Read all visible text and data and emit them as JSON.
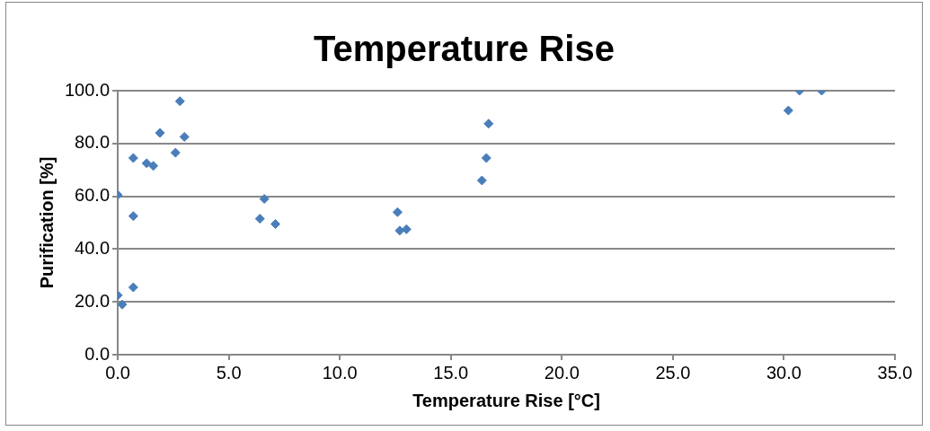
{
  "chart_data": {
    "type": "scatter",
    "title": "Temperature Rise",
    "xlabel": "Temperature Rise [°C]",
    "ylabel": "Purification [%]",
    "x": [
      0,
      0,
      0.2,
      0.7,
      0.7,
      0.7,
      1.3,
      1.6,
      1.9,
      2.6,
      2.8,
      3.0,
      6.4,
      6.6,
      7.1,
      12.6,
      12.7,
      13.0,
      16.4,
      16.6,
      16.7,
      30.2,
      30.7,
      31.7
    ],
    "values": [
      60.5,
      22.5,
      19,
      74.5,
      52.5,
      25.5,
      72.5,
      71.5,
      84,
      76.5,
      96,
      82.5,
      51.5,
      59,
      49.5,
      54,
      47,
      47.5,
      66,
      74.5,
      87.5,
      92.5,
      100,
      100
    ],
    "color": "#4a7ebb",
    "marker": "diamond",
    "grid": "y",
    "legend": false,
    "xlim": [
      0,
      35
    ],
    "xticks": [
      {
        "value": 0,
        "label": "0.0"
      },
      {
        "value": 5,
        "label": "5.0"
      },
      {
        "value": 10,
        "label": "10.0"
      },
      {
        "value": 15,
        "label": "15.0"
      },
      {
        "value": 20,
        "label": "20.0"
      },
      {
        "value": 25,
        "label": "25.0"
      },
      {
        "value": 30,
        "label": "30.0"
      },
      {
        "value": 35,
        "label": "35.0"
      }
    ],
    "ylim": [
      0,
      100
    ],
    "yticks": [
      {
        "value": 0,
        "label": "0.0"
      },
      {
        "value": 20,
        "label": "20.0"
      },
      {
        "value": 40,
        "label": "40.0"
      },
      {
        "value": 60,
        "label": "60.0"
      },
      {
        "value": 80,
        "label": "80.0"
      },
      {
        "value": 100,
        "label": "100.0"
      }
    ]
  }
}
